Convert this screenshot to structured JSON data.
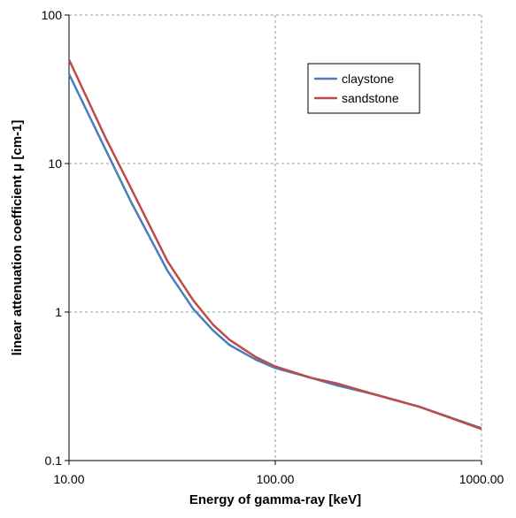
{
  "chart_data": {
    "type": "line",
    "x_label": "Energy of gamma-ray [keV]",
    "y_label": "linear attenuation coefficient μ [cm-1]",
    "x": [
      10,
      15,
      20,
      30,
      40,
      50,
      60,
      80,
      100,
      150,
      200,
      300,
      500,
      1000
    ],
    "series": [
      {
        "name": "claystone",
        "color": "#4a7ebb",
        "values": [
          40,
          12.5,
          5.5,
          1.9,
          1.05,
          0.75,
          0.6,
          0.48,
          0.42,
          0.36,
          0.32,
          0.28,
          0.23,
          0.165
        ]
      },
      {
        "name": "sandstone",
        "color": "#be4b48",
        "values": [
          50,
          15,
          6.8,
          2.2,
          1.2,
          0.82,
          0.65,
          0.5,
          0.43,
          0.36,
          0.33,
          0.28,
          0.23,
          0.163
        ]
      }
    ],
    "xscale": "log",
    "yscale": "log",
    "xlim": [
      10,
      1000
    ],
    "ylim": [
      0.1,
      100
    ],
    "xticks": [
      {
        "value": 10,
        "label": "10.00"
      },
      {
        "value": 100,
        "label": "100.00"
      },
      {
        "value": 1000,
        "label": "1000.00"
      }
    ],
    "yticks": [
      0.1,
      1,
      10,
      100
    ],
    "grid": true,
    "legend": "upper right"
  }
}
